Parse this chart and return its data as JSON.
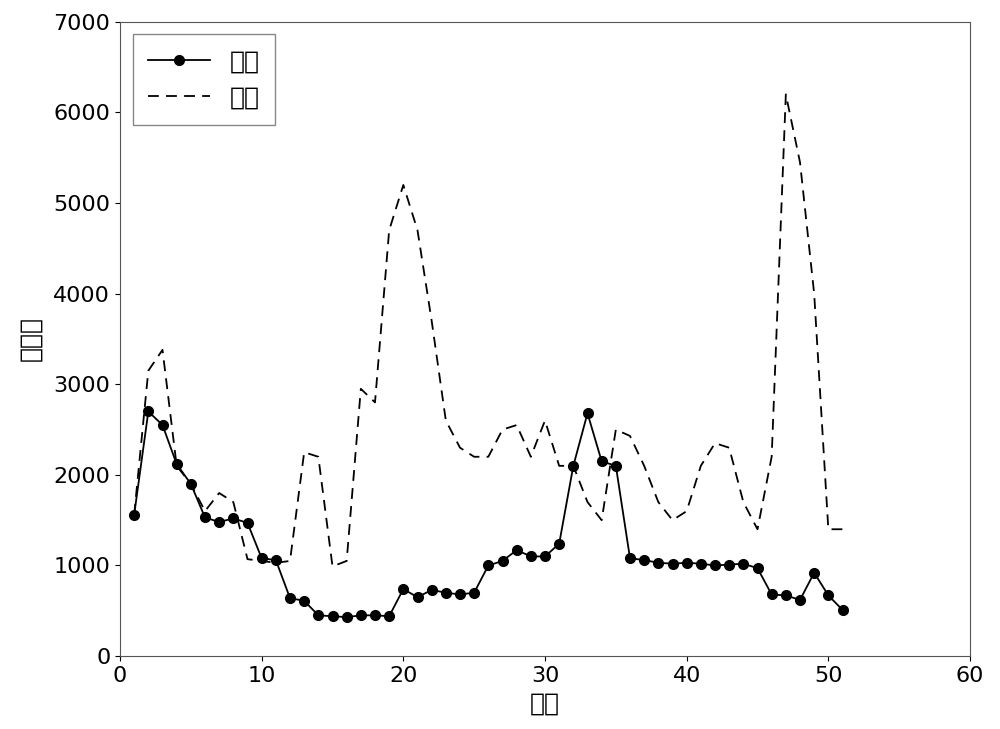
{
  "normal_x": [
    1,
    2,
    3,
    4,
    5,
    6,
    7,
    8,
    9,
    10,
    11,
    12,
    13,
    14,
    15,
    16,
    17,
    18,
    19,
    20,
    21,
    22,
    23,
    24,
    25,
    26,
    27,
    28,
    29,
    30,
    31,
    32,
    33,
    34,
    35,
    36,
    37,
    38,
    39,
    40,
    41,
    42,
    43,
    44,
    45,
    46,
    47,
    48,
    49,
    50,
    51
  ],
  "normal_y": [
    1560,
    2700,
    2550,
    2120,
    1900,
    1530,
    1480,
    1520,
    1470,
    1080,
    1060,
    640,
    610,
    450,
    440,
    430,
    450,
    450,
    440,
    740,
    650,
    730,
    700,
    680,
    700,
    1000,
    1050,
    1170,
    1100,
    1100,
    1240,
    2100,
    2680,
    2150,
    2100,
    1080,
    1060,
    1030,
    1020,
    1030,
    1020,
    1000,
    1010,
    1020,
    970,
    680,
    670,
    620,
    920,
    670,
    510
  ],
  "loose_x": [
    1,
    2,
    3,
    4,
    5,
    6,
    7,
    8,
    9,
    10,
    11,
    12,
    13,
    14,
    15,
    16,
    17,
    18,
    19,
    20,
    21,
    22,
    23,
    24,
    25,
    26,
    27,
    28,
    29,
    30,
    31,
    32,
    33,
    34,
    35,
    36,
    37,
    38,
    39,
    40,
    41,
    42,
    43,
    44,
    45,
    46,
    47,
    48,
    49,
    50,
    51
  ],
  "loose_y": [
    1560,
    3150,
    3380,
    2100,
    1900,
    1600,
    1800,
    1700,
    1070,
    1050,
    1030,
    1050,
    2250,
    2200,
    990,
    1050,
    2950,
    2800,
    4700,
    5200,
    4700,
    3700,
    2600,
    2300,
    2200,
    2200,
    2500,
    2550,
    2200,
    2600,
    2100,
    2100,
    1700,
    1500,
    2500,
    2430,
    2100,
    1700,
    1500,
    1600,
    2100,
    2350,
    2300,
    1700,
    1400,
    2200,
    6200,
    5450,
    4000,
    1400,
    1400
  ],
  "xlabel": "尺度",
  "ylabel": "形态谱",
  "xlim": [
    0,
    60
  ],
  "ylim": [
    0,
    7000
  ],
  "yticks": [
    0,
    1000,
    2000,
    3000,
    4000,
    5000,
    6000,
    7000
  ],
  "xticks": [
    0,
    10,
    20,
    30,
    40,
    50,
    60
  ],
  "legend_normal": "正常",
  "legend_loose": "松动",
  "line_color": "#000000",
  "background_color": "#ffffff",
  "label_fontsize": 18,
  "tick_fontsize": 16,
  "legend_fontsize": 18
}
